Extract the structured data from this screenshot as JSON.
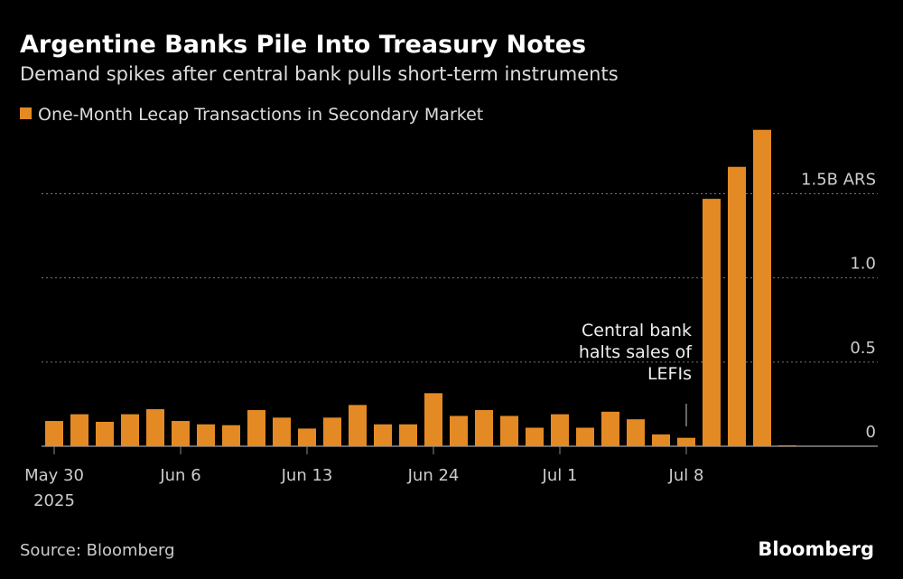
{
  "chart_data": {
    "type": "bar",
    "title": "Argentine Banks Pile Into Treasury Notes",
    "subtitle": "Demand spikes after central bank pulls short-term instruments",
    "categories": [
      "May 30\n2025",
      null,
      null,
      null,
      null,
      "Jun 6",
      null,
      null,
      null,
      null,
      "Jun 13",
      null,
      null,
      null,
      null,
      "Jun 24",
      null,
      null,
      null,
      null,
      "Jul 1",
      null,
      null,
      null,
      null,
      "Jul 8",
      null,
      null,
      null,
      null
    ],
    "series": [
      {
        "name": "One-Month Lecap Transactions in Secondary Market",
        "color": "#e48a24",
        "values": [
          0.15,
          0.19,
          0.145,
          0.19,
          0.22,
          0.15,
          0.13,
          0.125,
          0.215,
          0.17,
          0.105,
          0.17,
          0.245,
          0.13,
          0.13,
          0.315,
          0.18,
          0.215,
          0.18,
          0.11,
          0.19,
          0.11,
          0.205,
          0.16,
          0.07,
          0.05,
          1.47,
          1.66,
          1.88,
          0.005
        ]
      }
    ],
    "ylim": [
      0,
      1.9
    ],
    "yticks": [
      0,
      0.5,
      {
        "value": 1,
        "label": "1.0"
      },
      {
        "value": 1.5,
        "label": "1.5B ARS"
      }
    ],
    "grid": true,
    "annotation": {
      "lines": [
        "Central bank",
        "halts sales of",
        "LEFIs"
      ]
    },
    "source": "Source: Bloomberg",
    "brand": "Bloomberg"
  }
}
